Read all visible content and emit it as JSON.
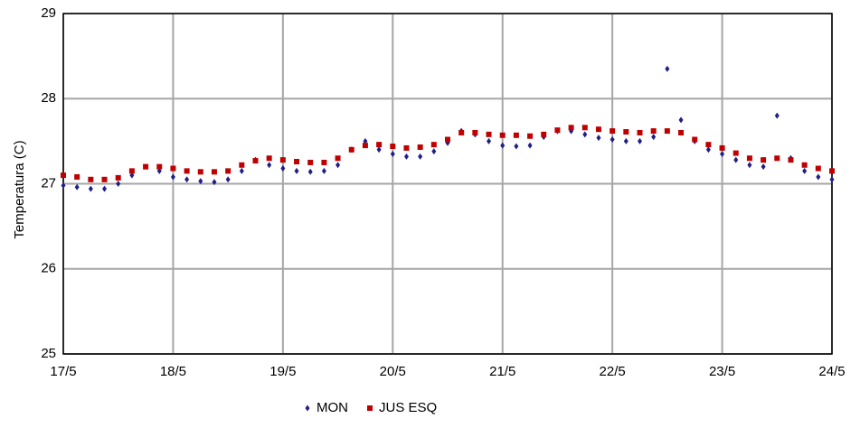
{
  "chart_data": {
    "type": "scatter",
    "y_label": "Temperatura (C)",
    "x": [
      0,
      0.125,
      0.25,
      0.375,
      0.5,
      0.625,
      0.75,
      0.875,
      1,
      1.125,
      1.25,
      1.375,
      1.5,
      1.625,
      1.75,
      1.875,
      2,
      2.125,
      2.25,
      2.375,
      2.5,
      2.625,
      2.75,
      2.875,
      3,
      3.125,
      3.25,
      3.375,
      3.5,
      3.625,
      3.75,
      3.875,
      4,
      4.125,
      4.25,
      4.375,
      4.5,
      4.625,
      4.75,
      4.875,
      5,
      5.125,
      5.25,
      5.375,
      5.5,
      5.625,
      5.75,
      5.875,
      6,
      6.125,
      6.25,
      6.375,
      6.5,
      6.625,
      6.75,
      6.875,
      7
    ],
    "series": [
      {
        "name": "MON",
        "color": "#1f1f8a",
        "marker": "diamond",
        "values": [
          26.98,
          26.96,
          26.94,
          26.94,
          27.0,
          27.1,
          27.2,
          27.15,
          27.08,
          27.05,
          27.03,
          27.02,
          27.05,
          27.15,
          27.28,
          27.22,
          27.18,
          27.15,
          27.14,
          27.15,
          27.22,
          27.4,
          27.5,
          27.4,
          27.35,
          27.32,
          27.32,
          27.38,
          27.48,
          27.62,
          27.58,
          27.5,
          27.45,
          27.44,
          27.45,
          27.55,
          27.62,
          27.62,
          27.58,
          27.54,
          27.52,
          27.5,
          27.5,
          27.55,
          28.35,
          27.75,
          27.5,
          27.4,
          27.35,
          27.28,
          27.22,
          27.2,
          27.8,
          27.3,
          27.15,
          27.08,
          27.05
        ]
      },
      {
        "name": "JUS ESQ",
        "color": "#c00000",
        "marker": "square",
        "values": [
          27.1,
          27.08,
          27.05,
          27.05,
          27.07,
          27.15,
          27.2,
          27.2,
          27.18,
          27.15,
          27.14,
          27.14,
          27.15,
          27.22,
          27.27,
          27.3,
          27.28,
          27.26,
          27.25,
          27.25,
          27.3,
          27.4,
          27.45,
          27.46,
          27.44,
          27.42,
          27.43,
          27.46,
          27.52,
          27.6,
          27.6,
          27.58,
          27.57,
          27.57,
          27.56,
          27.58,
          27.63,
          27.66,
          27.66,
          27.64,
          27.62,
          27.61,
          27.6,
          27.62,
          27.62,
          27.6,
          27.52,
          27.46,
          27.42,
          27.36,
          27.3,
          27.28,
          27.3,
          27.28,
          27.22,
          27.18,
          27.15
        ]
      }
    ],
    "xlim": [
      0,
      7
    ],
    "xticks": [
      {
        "value": 0,
        "label": "17/5"
      },
      {
        "value": 1,
        "label": "18/5"
      },
      {
        "value": 2,
        "label": "19/5"
      },
      {
        "value": 3,
        "label": "20/5"
      },
      {
        "value": 4,
        "label": "21/5"
      },
      {
        "value": 5,
        "label": "22/5"
      },
      {
        "value": 6,
        "label": "23/5"
      },
      {
        "value": 7,
        "label": "24/5"
      }
    ],
    "ylim": [
      25,
      29
    ],
    "yticks": [
      25,
      26,
      27,
      28,
      29
    ],
    "grid": true,
    "legend": "bottom"
  }
}
